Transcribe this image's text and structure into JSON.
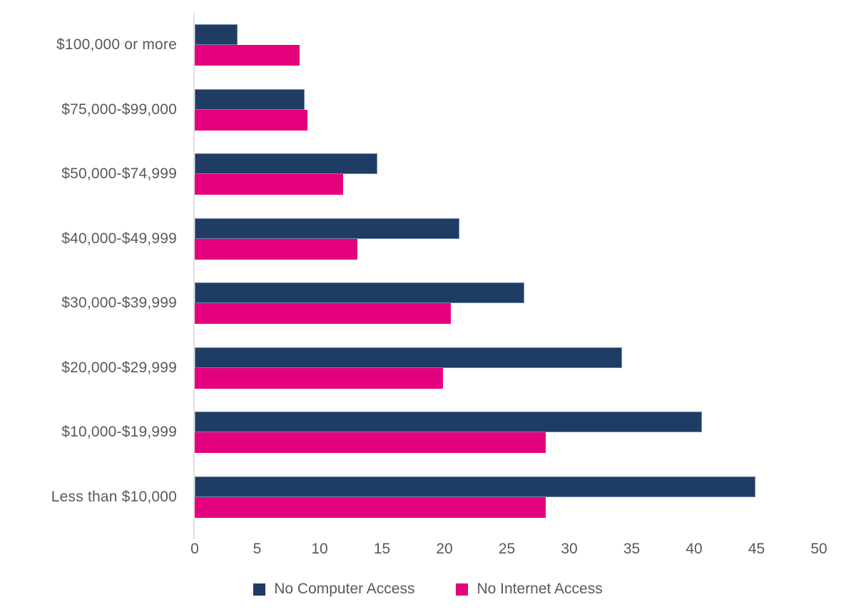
{
  "chart_data": {
    "type": "bar",
    "orientation": "horizontal",
    "title": "",
    "categories": [
      "$100,000 or more",
      "$75,000-$99,000",
      "$50,000-$74,999",
      "$40,000-$49,999",
      "$30,000-$39,999",
      "$20,000-$29,999",
      "$10,000-$19,999",
      "Less than $10,000"
    ],
    "series": [
      {
        "name": "No Computer Access",
        "color": "#1f3c64",
        "values": [
          3.4,
          8.8,
          14.6,
          21.2,
          26.4,
          34.2,
          40.6,
          44.9
        ]
      },
      {
        "name": "No Internet Access",
        "color": "#e5007e",
        "values": [
          8.4,
          9.0,
          11.9,
          13.0,
          20.5,
          19.9,
          28.1,
          28.1
        ]
      }
    ],
    "xlim": [
      0,
      50
    ],
    "x_ticks": [
      0,
      5,
      10,
      15,
      20,
      25,
      30,
      35,
      40,
      45,
      50
    ],
    "grid": false,
    "legend_position": "bottom",
    "axis_line_color": "#e2e2e2",
    "text_color": "#595959"
  }
}
